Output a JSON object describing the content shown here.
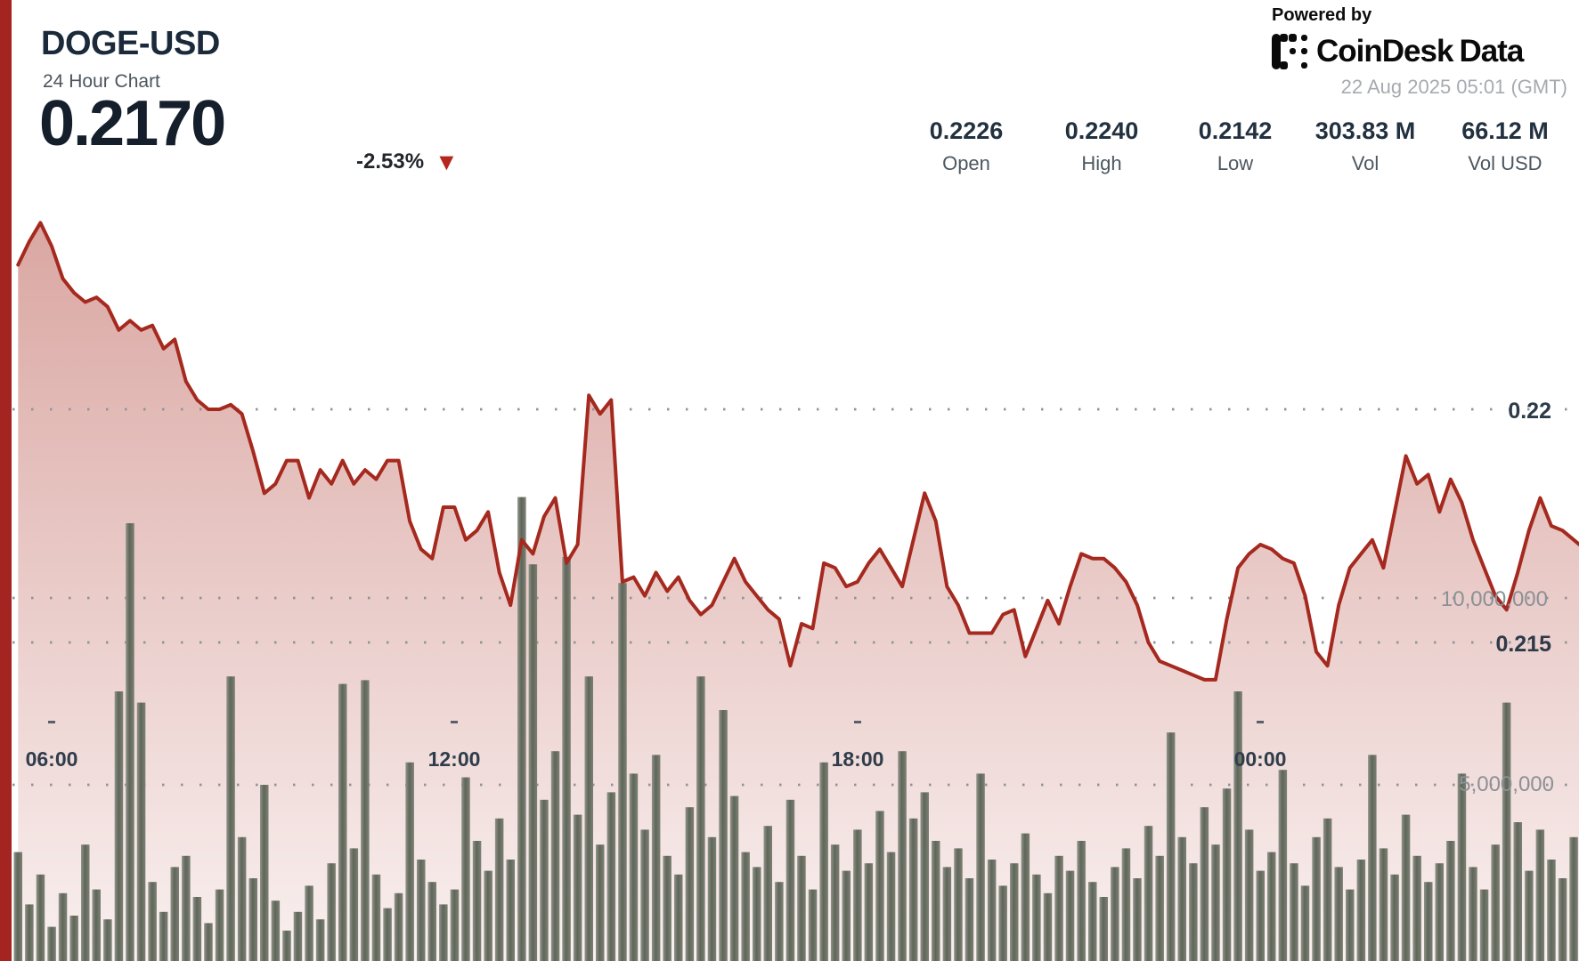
{
  "header": {
    "symbol": "DOGE-USD",
    "subtitle": "24 Hour Chart",
    "price": "0.2170",
    "change_pct": "-2.53%",
    "down_arrow": "▼"
  },
  "powered_by": {
    "label": "Powered by",
    "brand_primary": "CoinDesk",
    "brand_secondary": "Data",
    "timestamp": "22 Aug 2025 05:01 (GMT)"
  },
  "stats": [
    {
      "value": "0.2226",
      "label": "Open"
    },
    {
      "value": "0.2240",
      "label": "High"
    },
    {
      "value": "0.2142",
      "label": "Low"
    },
    {
      "value": "303.83 M",
      "label": "Vol"
    },
    {
      "value": "66.12 M",
      "label": "Vol USD"
    }
  ],
  "colors": {
    "line": "#a5291e",
    "area_top": "rgba(167,44,33,0.42)",
    "area_bottom": "rgba(167,44,33,0.07)",
    "left_stripe": "#a32421",
    "volume_bar_light": "#90958a",
    "volume_bar_dark": "#60655a",
    "volume_bar_mid": "#7b8173",
    "grid_dot": "#8e949b",
    "negative": "#b5271c"
  },
  "chart_data": {
    "type": "area",
    "title": "DOGE-USD 24 Hour Chart",
    "x_start_time": "05:30",
    "x_step_minutes": 10,
    "x_tick_labels": [
      "06:00",
      "12:00",
      "18:00",
      "00:00"
    ],
    "x_tick_hours": [
      6,
      12,
      18,
      24
    ],
    "price_ticks": [
      {
        "label": "0.22",
        "value": 0.22
      },
      {
        "label": "0.215",
        "value": 0.215
      }
    ],
    "volume_ticks": [
      {
        "label": "10,000,000",
        "value": 10000000
      },
      {
        "label": "5,000,000",
        "value": 5000000
      }
    ],
    "open": 0.2226,
    "high": 0.224,
    "low": 0.2142,
    "close": 0.217,
    "volume_total_label": "303.83 M",
    "volume_usd_label": "66.12 M",
    "grid": "dotted-horizontal",
    "legend_position": "none",
    "prices": [
      0.2231,
      0.2236,
      0.224,
      0.2235,
      0.2228,
      0.2225,
      0.2223,
      0.2224,
      0.2222,
      0.2217,
      0.2219,
      0.2217,
      0.2218,
      0.2213,
      0.2215,
      0.2206,
      0.2202,
      0.22,
      0.22,
      0.2201,
      0.2199,
      0.2191,
      0.2182,
      0.2184,
      0.2189,
      0.2189,
      0.2181,
      0.2187,
      0.2184,
      0.2189,
      0.2184,
      0.2187,
      0.2185,
      0.2189,
      0.2189,
      0.2176,
      0.217,
      0.2168,
      0.2179,
      0.2179,
      0.2172,
      0.2174,
      0.2178,
      0.2165,
      0.2158,
      0.2172,
      0.2169,
      0.2177,
      0.2181,
      0.2167,
      0.2171,
      0.2203,
      0.2199,
      0.2202,
      0.2163,
      0.2164,
      0.216,
      0.2165,
      0.2161,
      0.2164,
      0.2159,
      0.2156,
      0.2158,
      0.2163,
      0.2168,
      0.2163,
      0.216,
      0.2157,
      0.2155,
      0.2145,
      0.2154,
      0.2153,
      0.2167,
      0.2166,
      0.2162,
      0.2163,
      0.2167,
      0.217,
      0.2166,
      0.2162,
      0.2172,
      0.2182,
      0.2176,
      0.2162,
      0.2158,
      0.2152,
      0.2152,
      0.2152,
      0.2156,
      0.2157,
      0.2147,
      0.2153,
      0.2159,
      0.2154,
      0.2162,
      0.2169,
      0.2168,
      0.2168,
      0.2166,
      0.2163,
      0.2158,
      0.215,
      0.2146,
      0.2145,
      0.2144,
      0.2143,
      0.2142,
      0.2142,
      0.2155,
      0.2166,
      0.2169,
      0.2171,
      0.217,
      0.2168,
      0.2167,
      0.216,
      0.2148,
      0.2145,
      0.2158,
      0.2166,
      0.2169,
      0.2172,
      0.2166,
      0.2178,
      0.219,
      0.2184,
      0.2186,
      0.2178,
      0.2185,
      0.218,
      0.2172,
      0.2166,
      0.216,
      0.2157,
      0.2165,
      0.2174,
      0.2181,
      0.2175,
      0.2174,
      0.2172,
      0.217
    ],
    "volumes_millions": [
      3.2,
      1.8,
      2.6,
      1.2,
      2.1,
      1.5,
      3.4,
      2.2,
      1.4,
      7.5,
      12.0,
      7.2,
      2.4,
      1.6,
      2.8,
      3.1,
      2.0,
      1.3,
      2.2,
      7.9,
      3.6,
      2.5,
      5.0,
      1.9,
      1.1,
      1.6,
      2.3,
      1.4,
      2.9,
      7.7,
      3.3,
      7.8,
      2.6,
      1.7,
      2.1,
      5.6,
      3.0,
      2.4,
      1.8,
      2.2,
      5.2,
      3.5,
      2.7,
      4.1,
      3.0,
      12.7,
      10.9,
      4.6,
      5.9,
      11.1,
      4.2,
      7.9,
      3.4,
      4.8,
      10.4,
      5.3,
      3.8,
      5.8,
      3.1,
      2.6,
      4.4,
      7.9,
      3.6,
      7.0,
      4.7,
      3.2,
      2.8,
      3.9,
      2.4,
      4.6,
      3.1,
      2.2,
      5.6,
      3.4,
      2.7,
      3.8,
      2.9,
      4.3,
      3.2,
      5.9,
      4.1,
      4.8,
      3.5,
      2.8,
      3.3,
      2.5,
      5.3,
      3.0,
      2.3,
      2.9,
      3.7,
      2.6,
      2.1,
      3.1,
      2.7,
      3.5,
      2.4,
      2.0,
      2.8,
      3.3,
      2.5,
      3.9,
      3.1,
      6.4,
      3.6,
      2.9,
      4.4,
      3.4,
      4.9,
      7.5,
      3.8,
      2.7,
      3.2,
      5.4,
      2.9,
      2.3,
      3.6,
      4.1,
      2.8,
      2.2,
      3.0,
      5.8,
      3.3,
      2.6,
      4.2,
      3.1,
      2.4,
      2.9,
      3.5,
      5.3,
      2.8,
      2.2,
      3.4,
      7.2,
      4.0,
      2.7,
      3.8,
      3.0,
      2.5,
      3.6,
      2.9
    ]
  }
}
